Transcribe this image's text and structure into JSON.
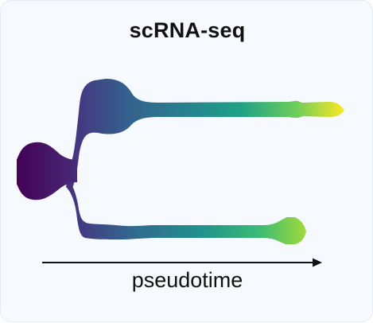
{
  "diagram": {
    "title": "scRNA-seq",
    "axis_label": "pseudotime",
    "branches": [
      {
        "name": "root",
        "color_start": "#440154",
        "color_end": "#46327e"
      },
      {
        "name": "upper-branch",
        "color_start": "#46327e",
        "color_end": "#fde725"
      },
      {
        "name": "lower-branch",
        "color_start": "#46327e",
        "color_end": "#8fd744"
      }
    ]
  }
}
